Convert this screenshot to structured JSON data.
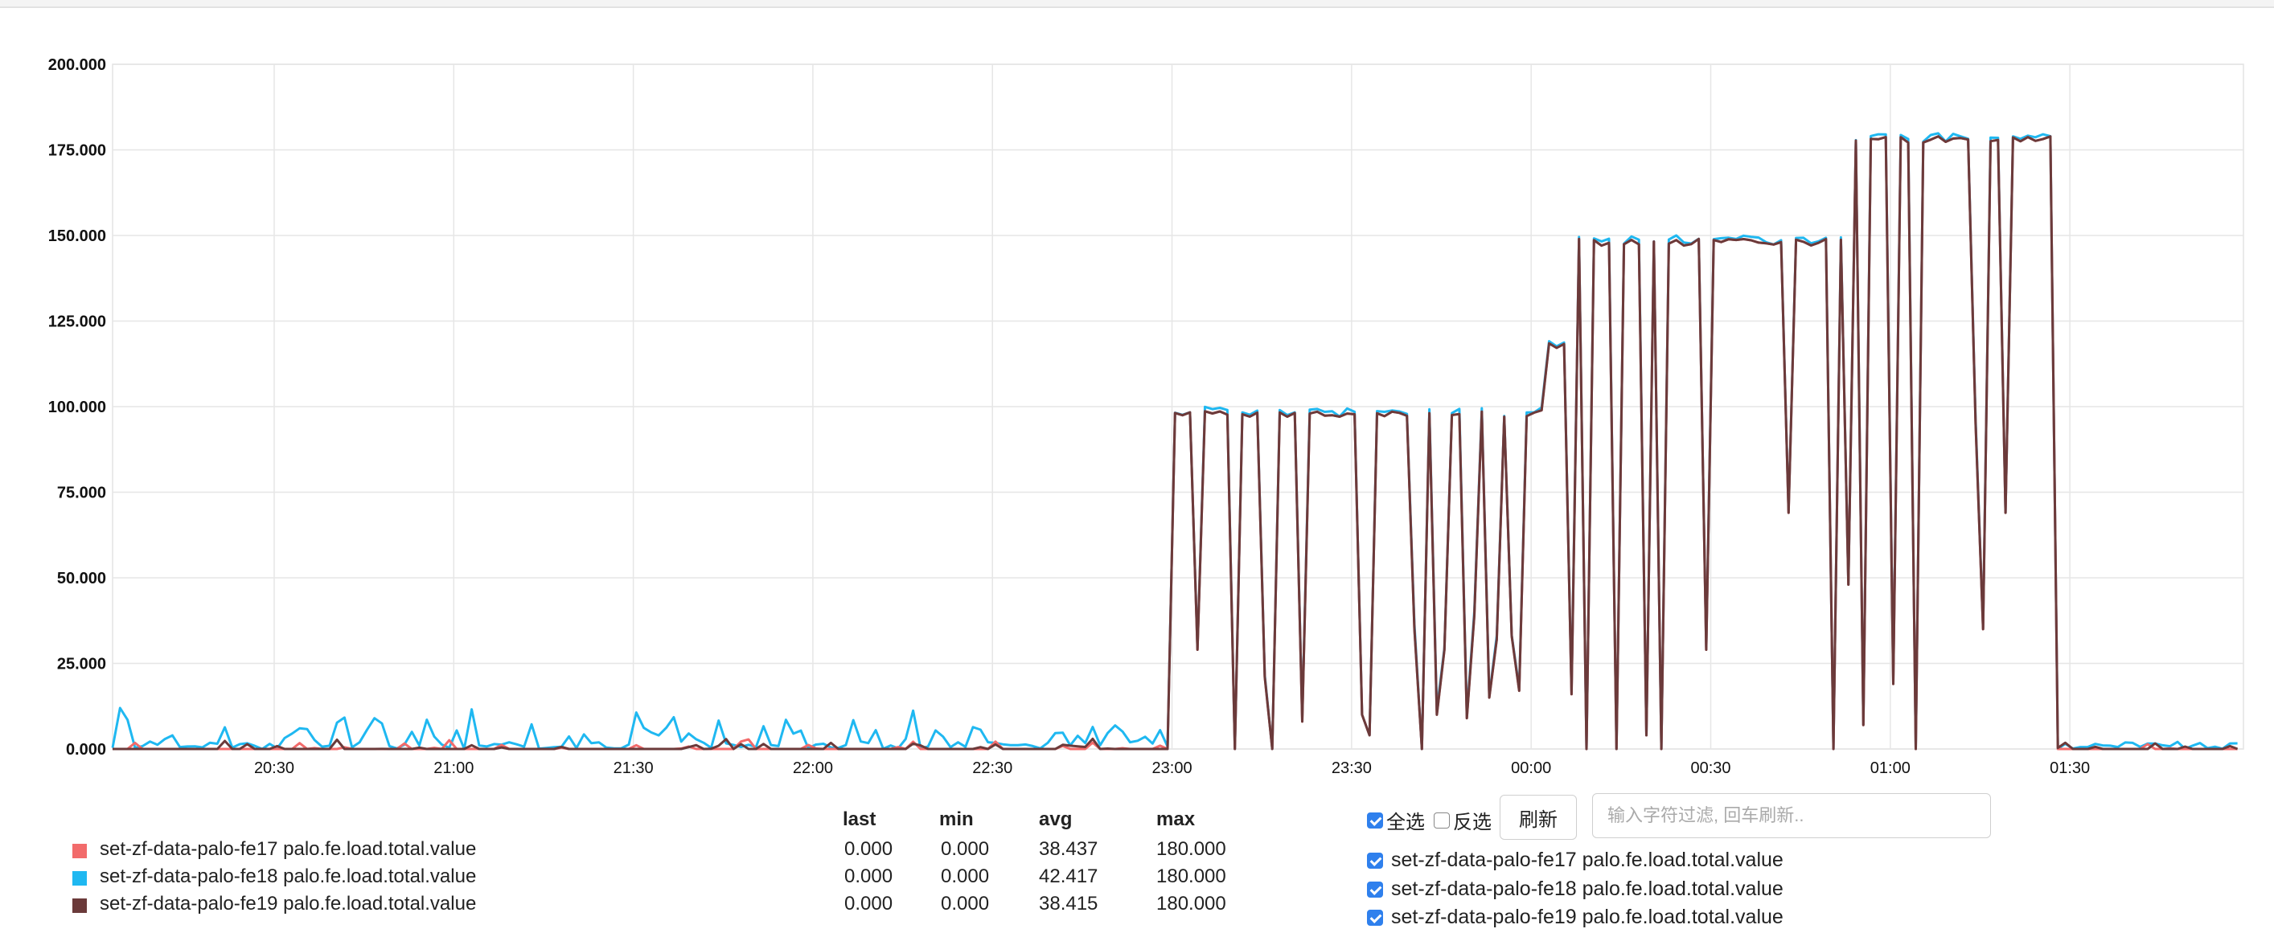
{
  "chart_data": {
    "type": "line",
    "ylim": [
      0,
      200
    ],
    "yticks": [
      "0.000",
      "25.000",
      "50.000",
      "75.000",
      "100.000",
      "125.000",
      "150.000",
      "175.000",
      "200.000"
    ],
    "xrange": [
      "20:03",
      "01:59"
    ],
    "xticks": [
      "20:30",
      "21:00",
      "21:30",
      "22:00",
      "22:30",
      "23:00",
      "23:30",
      "00:00",
      "00:30",
      "01:00",
      "01:30"
    ],
    "grid": true,
    "series": [
      {
        "name": "set-zf-data-palo-fe17 palo.fe.load.total.value",
        "color": "#f26b6b"
      },
      {
        "name": "set-zf-data-palo-fe18 palo.fe.load.total.value",
        "color": "#1fb8f1"
      },
      {
        "name": "set-zf-data-palo-fe19 palo.fe.load.total.value",
        "color": "#6b3a3a"
      }
    ],
    "phases": [
      {
        "from": "20:03",
        "to": "23:00",
        "fe18_peak_max": 13,
        "others_peak_max": 3
      },
      {
        "from": "23:00",
        "to": "00:03",
        "plateau": 99,
        "min": 0
      },
      {
        "from": "00:03",
        "to": "00:07",
        "plateau": 119,
        "min": 0
      },
      {
        "from": "00:07",
        "to": "00:52",
        "plateau": 149,
        "min": 0
      },
      {
        "from": "00:52",
        "to": "01:28",
        "plateau": 179,
        "min": 0
      },
      {
        "from": "01:28",
        "to": "01:59",
        "fe18_peak_max": 3,
        "others_peak_max": 2
      }
    ]
  },
  "legend": {
    "headers": {
      "last": "last",
      "min": "min",
      "avg": "avg",
      "max": "max"
    },
    "rows": [
      {
        "name": "set-zf-data-palo-fe17 palo.fe.load.total.value",
        "color": "#f26b6b",
        "last": "0.000",
        "min": "0.000",
        "avg": "38.437",
        "max": "180.000"
      },
      {
        "name": "set-zf-data-palo-fe18 palo.fe.load.total.value",
        "color": "#1fb8f1",
        "last": "0.000",
        "min": "0.000",
        "avg": "42.417",
        "max": "180.000"
      },
      {
        "name": "set-zf-data-palo-fe19 palo.fe.load.total.value",
        "color": "#6b3a3a",
        "last": "0.000",
        "min": "0.000",
        "avg": "38.415",
        "max": "180.000"
      }
    ]
  },
  "controls": {
    "select_all_label": "全选",
    "select_all_checked": true,
    "invert_label": "反选",
    "invert_checked": false,
    "refresh_label": "刷新",
    "filter_placeholder": "输入字符过滤, 回车刷新.."
  },
  "series_checklist": [
    {
      "label": "set-zf-data-palo-fe17 palo.fe.load.total.value",
      "checked": true
    },
    {
      "label": "set-zf-data-palo-fe18 palo.fe.load.total.value",
      "checked": true
    },
    {
      "label": "set-zf-data-palo-fe19 palo.fe.load.total.value",
      "checked": true
    }
  ]
}
